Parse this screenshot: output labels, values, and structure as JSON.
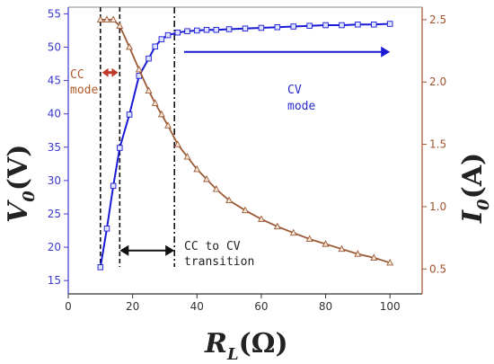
{
  "chart_data": {
    "type": "line",
    "xlabel_main": "R",
    "xlabel_sub": "L",
    "xlabel_unit": "(Ω)",
    "ylabel_left_main": "V",
    "ylabel_left_sub": "0",
    "ylabel_left_unit": "(V)",
    "ylabel_right_main": "I",
    "ylabel_right_sub": "0",
    "ylabel_right_unit": "(A)",
    "xlim": [
      0,
      110
    ],
    "ylim_left": [
      13,
      56
    ],
    "ylim_right": [
      0.3,
      2.6
    ],
    "x_ticks": [
      0,
      20,
      40,
      60,
      80,
      100
    ],
    "y_left_ticks": [
      15,
      20,
      25,
      30,
      35,
      40,
      45,
      50,
      55
    ],
    "y_right_ticks": [
      "0.5",
      "1.0",
      "1.5",
      "2.0",
      "2.5"
    ],
    "series": [
      {
        "axis": "left",
        "color": "#1a1ad6",
        "marker": "square",
        "points": [
          [
            10,
            17
          ],
          [
            12,
            22.8
          ],
          [
            14,
            29.2
          ],
          [
            16,
            34.9
          ],
          [
            19,
            39.9
          ],
          [
            22,
            45.7
          ],
          [
            25,
            48.3
          ],
          [
            27,
            50.1
          ],
          [
            29,
            51.2
          ],
          [
            31,
            51.8
          ],
          [
            34,
            52.2
          ],
          [
            37,
            52.4
          ],
          [
            40,
            52.5
          ],
          [
            43,
            52.6
          ],
          [
            46,
            52.6
          ],
          [
            50,
            52.7
          ],
          [
            55,
            52.8
          ],
          [
            60,
            52.9
          ],
          [
            65,
            53.0
          ],
          [
            70,
            53.1
          ],
          [
            75,
            53.2
          ],
          [
            80,
            53.3
          ],
          [
            85,
            53.3
          ],
          [
            90,
            53.4
          ],
          [
            95,
            53.4
          ],
          [
            100,
            53.5
          ]
        ]
      },
      {
        "axis": "right",
        "color": "#9b5a36",
        "marker": "triangle",
        "points": [
          [
            10,
            2.5
          ],
          [
            12,
            2.5
          ],
          [
            14,
            2.5
          ],
          [
            16,
            2.45
          ],
          [
            19,
            2.28
          ],
          [
            22,
            2.1
          ],
          [
            25,
            1.93
          ],
          [
            27,
            1.83
          ],
          [
            29,
            1.74
          ],
          [
            31,
            1.65
          ],
          [
            34,
            1.5
          ],
          [
            37,
            1.4
          ],
          [
            40,
            1.3
          ],
          [
            43,
            1.22
          ],
          [
            46,
            1.14
          ],
          [
            50,
            1.05
          ],
          [
            55,
            0.97
          ],
          [
            60,
            0.9
          ],
          [
            65,
            0.84
          ],
          [
            70,
            0.79
          ],
          [
            75,
            0.74
          ],
          [
            80,
            0.7
          ],
          [
            85,
            0.66
          ],
          [
            90,
            0.62
          ],
          [
            95,
            0.59
          ],
          [
            100,
            0.55
          ]
        ]
      }
    ],
    "vlines": [
      10,
      16,
      33
    ],
    "annotations": {
      "cc_line1": "CC",
      "cc_line2": "mode",
      "cv_line1": "CV",
      "cv_line2": "mode",
      "trans_line1": "CC to CV",
      "trans_line2": "transition"
    },
    "colors": {
      "left_axis": "#3a3ad0",
      "right_axis": "#a0522d",
      "cc_text": "#b05a2a",
      "cv_text": "#2a2ad0",
      "cv_arrow": "#1a1ad6",
      "cc_marker": "#c0392b",
      "transition_text": "#222222"
    }
  }
}
